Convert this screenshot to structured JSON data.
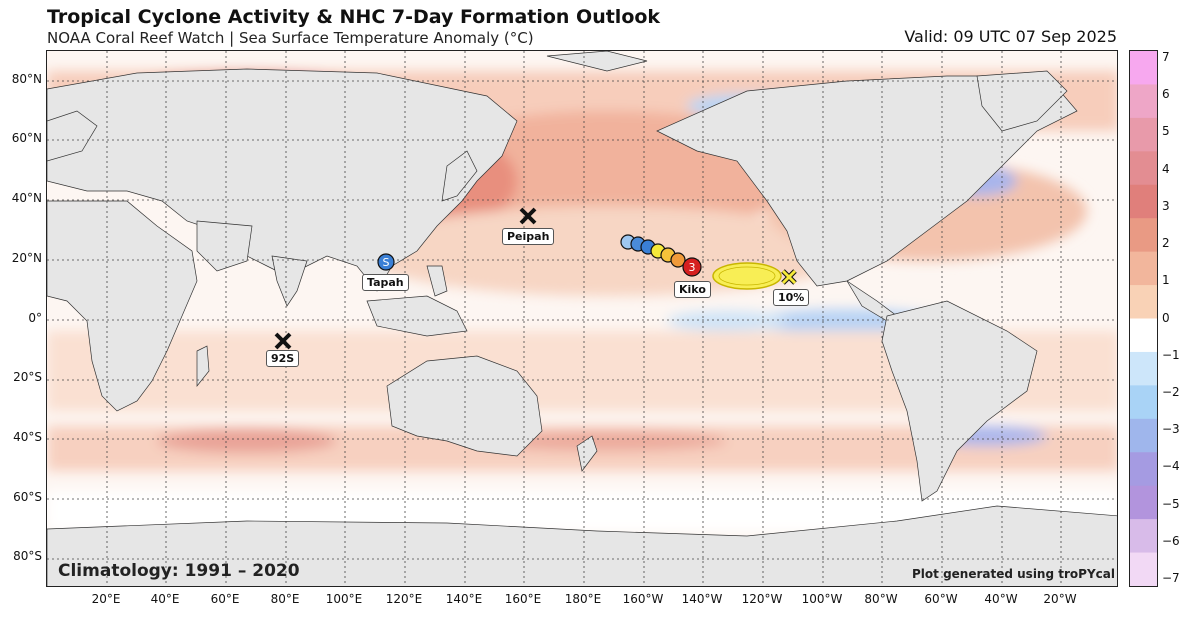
{
  "header": {
    "title": "Tropical Cyclone Activity & NHC 7-Day Formation Outlook",
    "subtitle": "NOAA Coral Reef Watch | Sea Surface Temperature Anomaly (°C)",
    "valid": "Valid: 09 UTC 07 Sep 2025"
  },
  "footer": {
    "climatology": "Climatology: 1991 – 2020",
    "credit": "Plot generated using troPYcal"
  },
  "axes": {
    "lat_labels": [
      "80°N",
      "60°N",
      "40°N",
      "20°N",
      "0°",
      "20°S",
      "40°S",
      "60°S",
      "80°S"
    ],
    "lon_labels": [
      "20°E",
      "40°E",
      "60°E",
      "80°E",
      "100°E",
      "120°E",
      "140°E",
      "160°E",
      "180°E",
      "160°W",
      "140°W",
      "120°W",
      "100°W",
      "80°W",
      "60°W",
      "40°W",
      "20°W"
    ]
  },
  "storms": [
    {
      "name": "Tapah",
      "symbol": "S",
      "color": "#3a7fd5"
    },
    {
      "name": "Peipah",
      "symbol": "X",
      "color": "#111111"
    },
    {
      "name": "92S",
      "symbol": "X",
      "color": "#111111"
    },
    {
      "name": "Kiko",
      "symbol": "3",
      "color": "#d62020"
    }
  ],
  "outlook": {
    "label": "10%",
    "color": "#f5e93a"
  },
  "colorbar": {
    "ticks": [
      "7",
      "6",
      "5",
      "4",
      "3",
      "2",
      "1",
      "0",
      "−1",
      "−2",
      "−3",
      "−4",
      "−5",
      "−6",
      "−7"
    ],
    "colors": [
      "#f7a8ef",
      "#eea6c7",
      "#e89aaa",
      "#e38d92",
      "#e07f7b",
      "#e99a84",
      "#f2b69c",
      "#f9d2b6",
      "#ffffff",
      "#cde6fa",
      "#a9d3f6",
      "#9fb6ec",
      "#a59be2",
      "#b294dd",
      "#d8bbe9",
      "#f2d9f5"
    ]
  }
}
